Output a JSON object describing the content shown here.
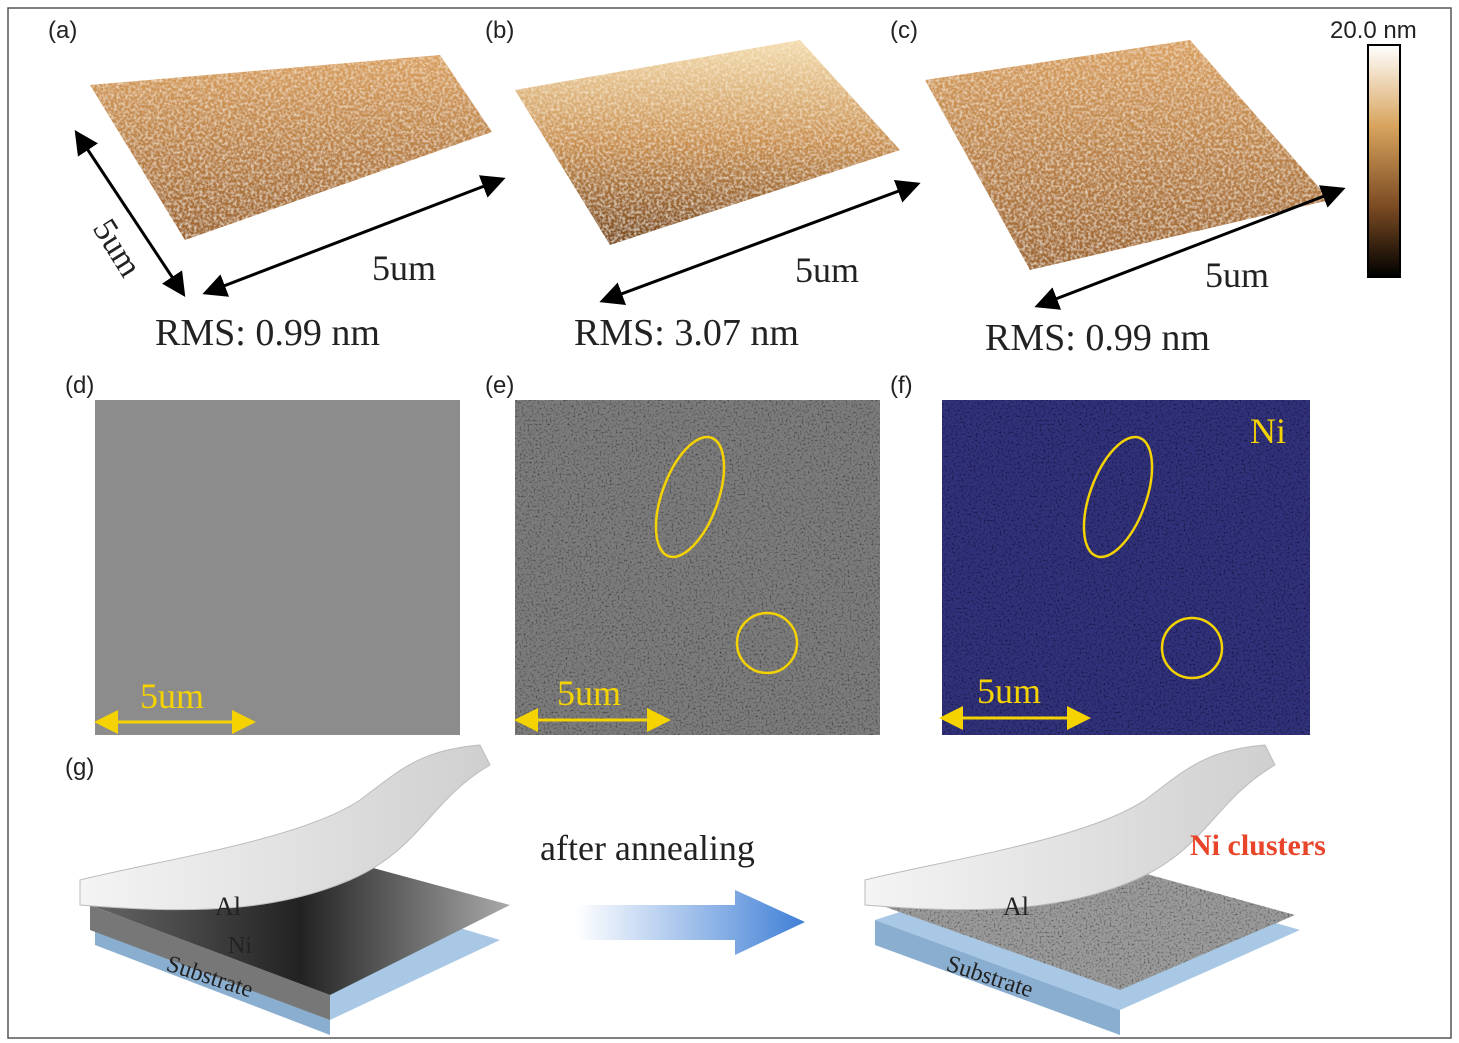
{
  "panels": [
    {
      "label": "(a)",
      "scale_x": "5um",
      "scale_y": "5um",
      "rms": "RMS: 0.99 nm"
    },
    {
      "label": "(b)",
      "scale_x": "5um",
      "rms": "RMS: 3.07 nm"
    },
    {
      "label": "(c)",
      "scale_x": "5um",
      "rms": "RMS: 0.99 nm"
    },
    {
      "label": "(d)",
      "scale": "5um"
    },
    {
      "label": "(e)",
      "scale": "5um"
    },
    {
      "label": "(f)",
      "scale": "5um",
      "element": "Ni"
    },
    {
      "label": "(g)"
    }
  ],
  "colorbar": {
    "label": "20.0 nm"
  },
  "schematic": {
    "arrow_text": "after annealing",
    "before": {
      "top": "Al",
      "middle": "Ni",
      "bottom": "Substrate"
    },
    "after": {
      "top": "Al",
      "bottom": "Substrate",
      "clusters": "Ni clusters"
    }
  }
}
